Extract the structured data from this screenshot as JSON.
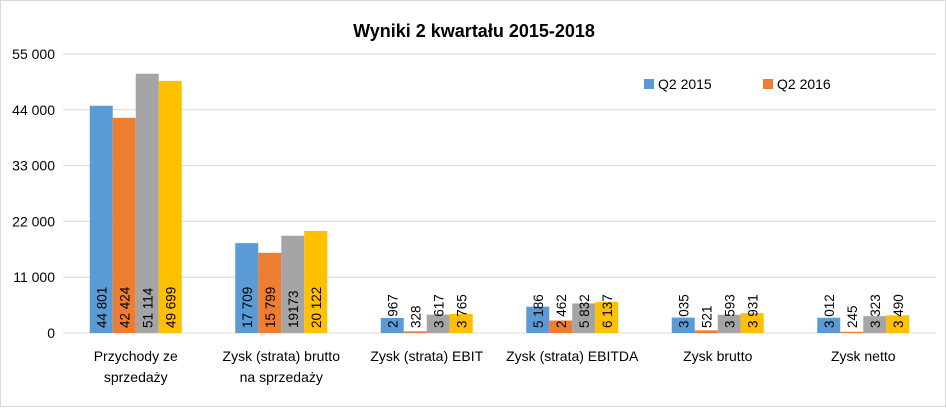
{
  "chart_data": {
    "type": "bar",
    "title": "Wyniki 2 kwartału 2015-2018",
    "xlabel": "",
    "ylabel": "",
    "ylim": [
      0,
      55000
    ],
    "yticks": [
      0,
      11000,
      22000,
      33000,
      44000,
      55000
    ],
    "ytick_labels": [
      "0",
      "11 000",
      "22 000",
      "33 000",
      "44 000",
      "55 000"
    ],
    "grid": true,
    "legend_position": "top-right",
    "categories": [
      [
        "Przychody ze",
        "sprzedaży"
      ],
      [
        "Zysk (strata) brutto",
        "na sprzedaży"
      ],
      [
        "Zysk (strata) EBIT"
      ],
      [
        "Zysk (strata) EBITDA"
      ],
      [
        "Zysk brutto"
      ],
      [
        "Zysk netto"
      ]
    ],
    "series": [
      {
        "name": "Q2 2015",
        "color": "#5b9bd5",
        "values": [
          44801,
          17709,
          2967,
          5186,
          3035,
          3012
        ],
        "labels": [
          "44 801",
          "17 709",
          "2 967",
          "5 186",
          "3 035",
          "3 012"
        ]
      },
      {
        "name": "Q2 2016",
        "color": "#ed7d31",
        "values": [
          42424,
          15799,
          328,
          2462,
          521,
          245
        ],
        "labels": [
          "42 424",
          "15 799",
          "328",
          "2 462",
          "521",
          "245"
        ]
      },
      {
        "name": "",
        "color": "#a5a5a5",
        "values": [
          51114,
          19173,
          3617,
          5832,
          3593,
          3323
        ],
        "labels": [
          "51 114",
          "19173",
          "3 617",
          "5 832",
          "3 593",
          "3 323"
        ]
      },
      {
        "name": "",
        "color": "#ffc000",
        "values": [
          49699,
          20122,
          3765,
          6137,
          3931,
          3490
        ],
        "labels": [
          "49 699",
          "20 122",
          "3 765",
          "6 137",
          "3 931",
          "3 490"
        ]
      }
    ]
  }
}
